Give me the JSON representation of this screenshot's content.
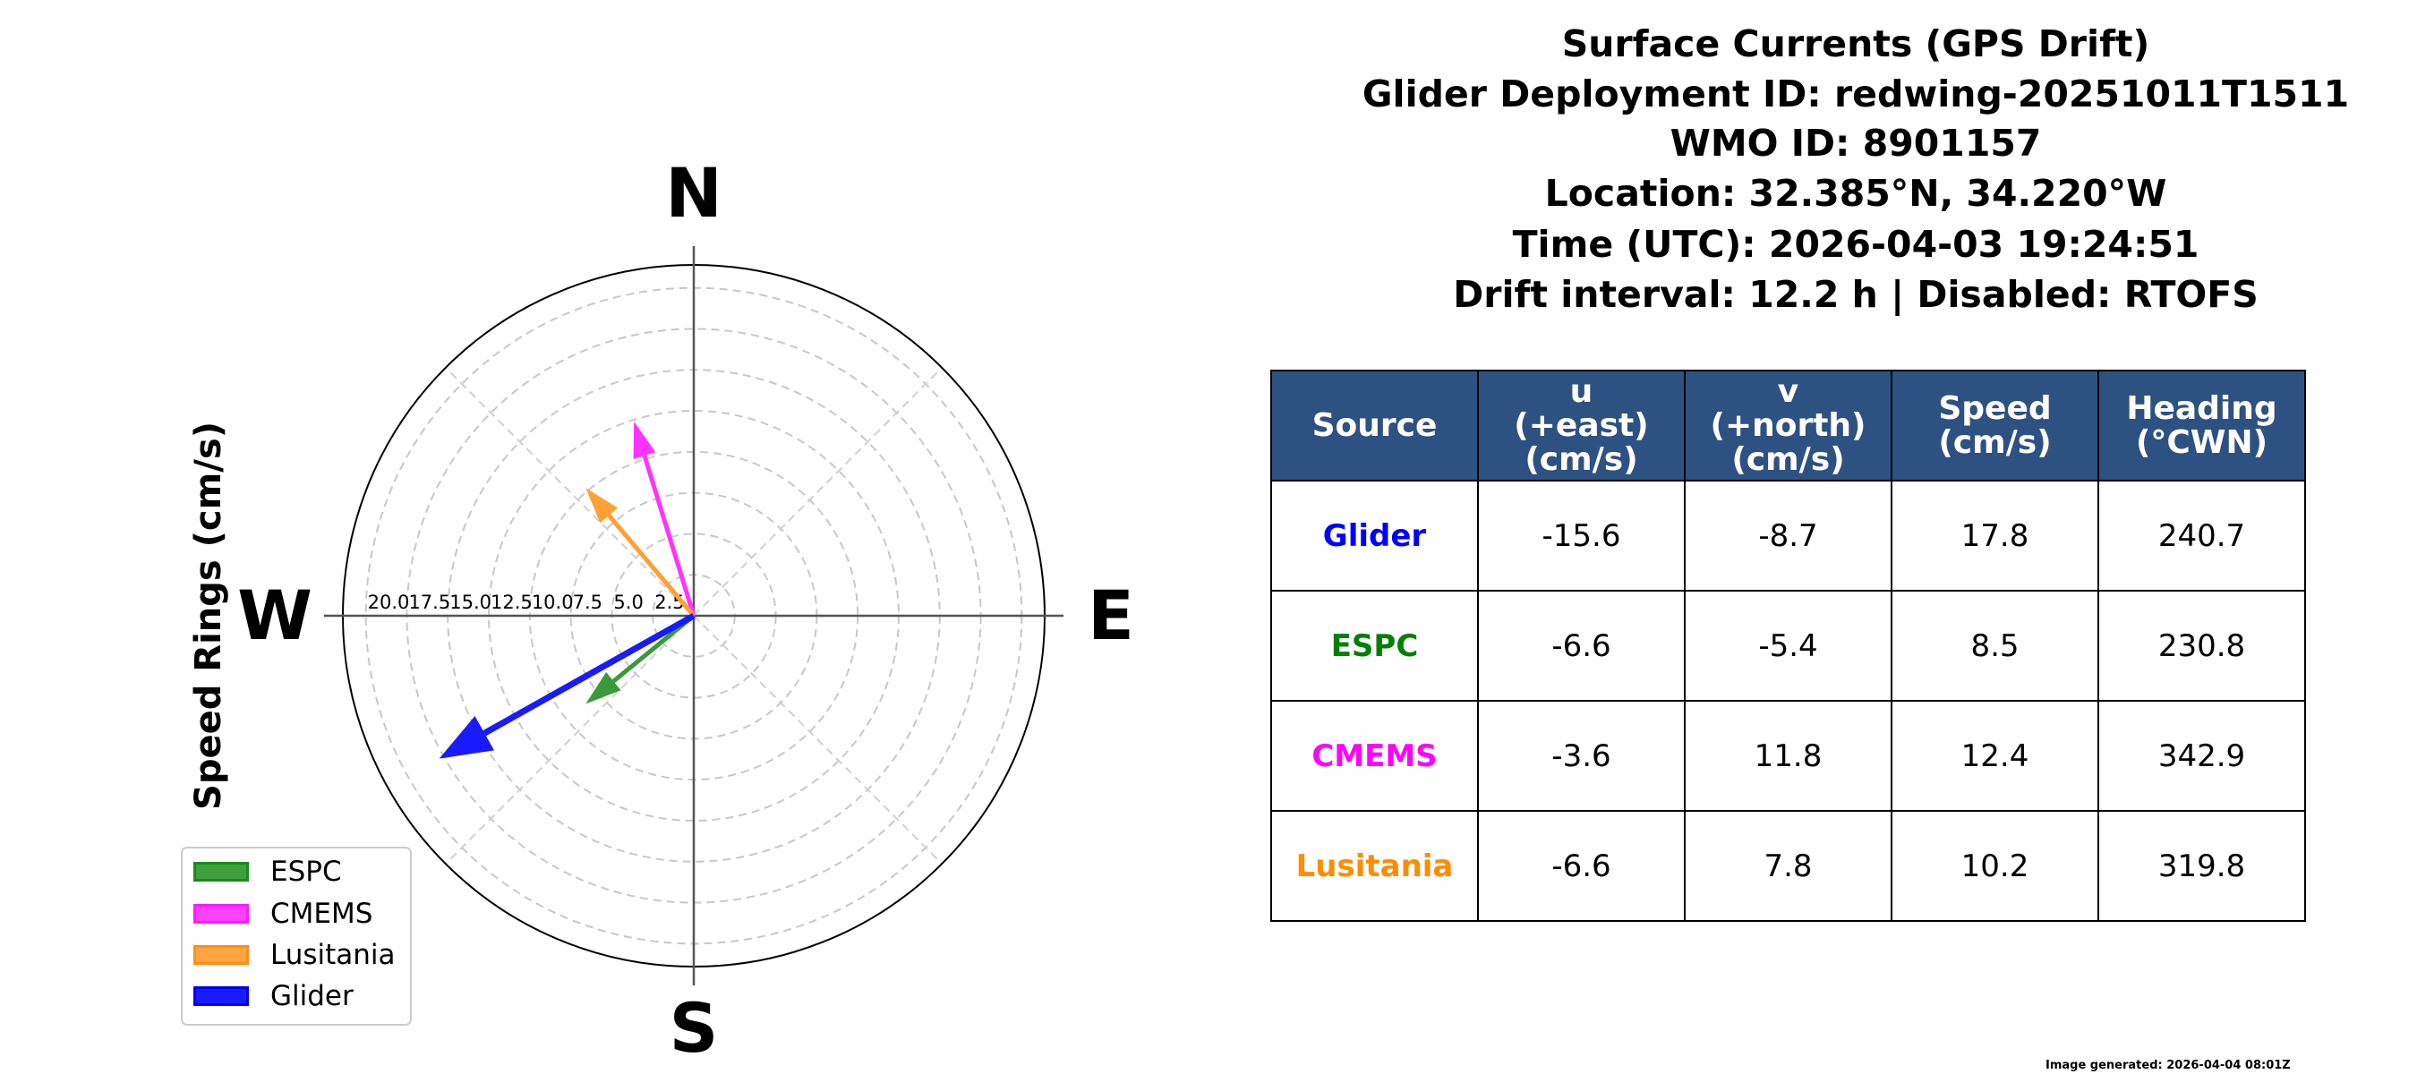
{
  "title": {
    "lines": [
      "Surface Currents (GPS Drift)",
      "Glider Deployment ID: redwing-20251011T1511",
      "WMO ID: 8901157",
      "Location: 32.385°N, 34.220°W",
      "Time (UTC): 2026-04-03 19:24:51",
      "Drift interval: 12.2 h | Disabled: RTOFS"
    ]
  },
  "chart_data": {
    "type": "polar-vector",
    "ylabel": "Speed Rings (cm/s)",
    "compass": {
      "N": "N",
      "E": "E",
      "S": "S",
      "W": "W"
    },
    "rlim": [
      0,
      21.4
    ],
    "ring_ticks": [
      "2.5",
      "5.0",
      "7.5",
      "10.0",
      "12.5",
      "15.0",
      "17.5",
      "20.0"
    ],
    "ring_values": [
      2.5,
      5.0,
      7.5,
      10.0,
      12.5,
      15.0,
      17.5,
      20.0
    ],
    "grid": true,
    "legend_position": "lower-left",
    "series": [
      {
        "name": "ESPC",
        "u": -6.6,
        "v": -5.4,
        "speed": 8.5,
        "heading": 230.8,
        "color": "#3a9a3a"
      },
      {
        "name": "CMEMS",
        "u": -3.6,
        "v": 11.8,
        "speed": 12.4,
        "heading": 342.9,
        "color": "#ff33ff"
      },
      {
        "name": "Lusitania",
        "u": -6.6,
        "v": 7.8,
        "speed": 10.2,
        "heading": 319.8,
        "color": "#ffa033"
      },
      {
        "name": "Glider",
        "u": -15.6,
        "v": -8.7,
        "speed": 17.8,
        "heading": 240.7,
        "color": "#1a1aff"
      }
    ]
  },
  "table": {
    "headers": [
      "Source",
      "u\n(+east)\n(cm/s)",
      "v\n(+north)\n(cm/s)",
      "Speed\n(cm/s)",
      "Heading\n(°CWN)"
    ],
    "header_color": "#2d5282",
    "rows": [
      {
        "source": "Glider",
        "color": "#0000ff",
        "u": "-15.6",
        "v": "-8.7",
        "speed": "17.8",
        "heading": "240.7"
      },
      {
        "source": "ESPC",
        "color": "#008000",
        "u": "-6.6",
        "v": "-5.4",
        "speed": "8.5",
        "heading": "230.8"
      },
      {
        "source": "CMEMS",
        "color": "#ff00ff",
        "u": "-3.6",
        "v": "11.8",
        "speed": "12.4",
        "heading": "342.9"
      },
      {
        "source": "Lusitania",
        "color": "#ff8c00",
        "u": "-6.6",
        "v": "7.8",
        "speed": "10.2",
        "heading": "319.8"
      }
    ]
  },
  "legend": [
    "ESPC",
    "CMEMS",
    "Lusitania",
    "Glider"
  ],
  "footer": "Image generated: 2026-04-04 08:01Z"
}
